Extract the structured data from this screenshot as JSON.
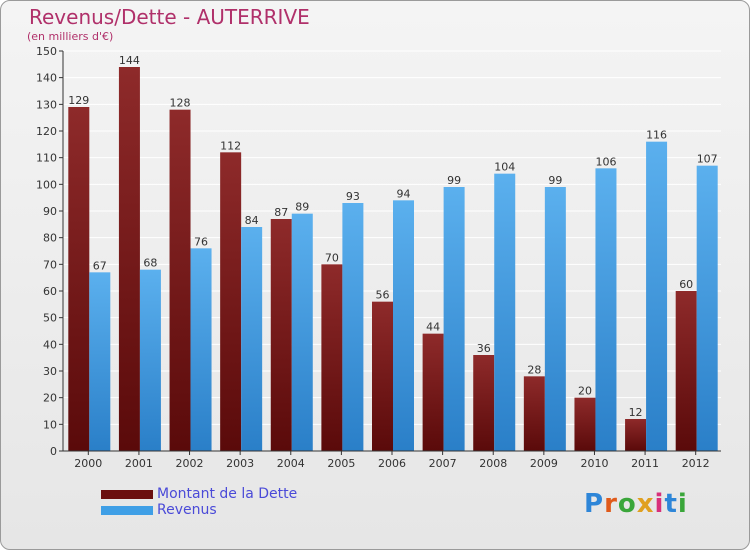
{
  "chart_data": {
    "type": "bar",
    "title": "Revenus/Dette - AUTERRIVE",
    "subtitle": "(en milliers d'€)",
    "categories": [
      "2000",
      "2001",
      "2002",
      "2003",
      "2004",
      "2005",
      "2006",
      "2007",
      "2008",
      "2009",
      "2010",
      "2011",
      "2012"
    ],
    "series": [
      {
        "name": "Montant de la Dette",
        "color": "#7a1515",
        "values": [
          129,
          144,
          128,
          112,
          87,
          70,
          56,
          44,
          36,
          28,
          20,
          12,
          60
        ]
      },
      {
        "name": "Revenus",
        "color": "#3f9fe6",
        "values": [
          67,
          68,
          76,
          84,
          89,
          93,
          94,
          99,
          104,
          99,
          106,
          116,
          107
        ]
      }
    ],
    "ylim": [
      0,
      150
    ],
    "yticks": [
      0,
      10,
      20,
      30,
      40,
      50,
      60,
      70,
      80,
      90,
      100,
      110,
      120,
      130,
      140,
      150
    ],
    "grid": true,
    "legend_position": "bottom-left"
  },
  "logo": {
    "text": "Proxiti"
  }
}
